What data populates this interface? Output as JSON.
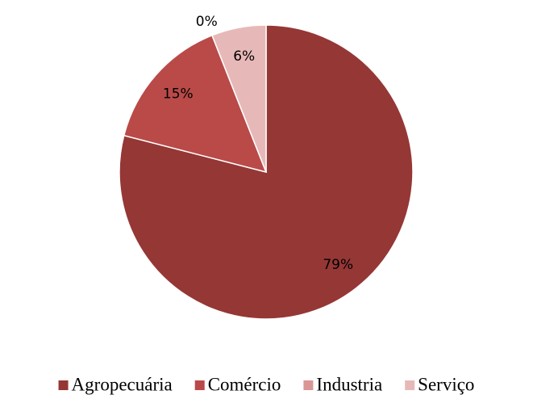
{
  "chart_data": {
    "type": "pie",
    "categories": [
      "Agropecuária",
      "Comércio",
      "Industria",
      "Serviço"
    ],
    "values": [
      79,
      15,
      0,
      6
    ],
    "value_labels": [
      "79%",
      "15%",
      "0%",
      "6%"
    ],
    "colors": [
      "#953735",
      "#b94a48",
      "#d99694",
      "#e6b9b8"
    ],
    "legend": "bottom"
  }
}
